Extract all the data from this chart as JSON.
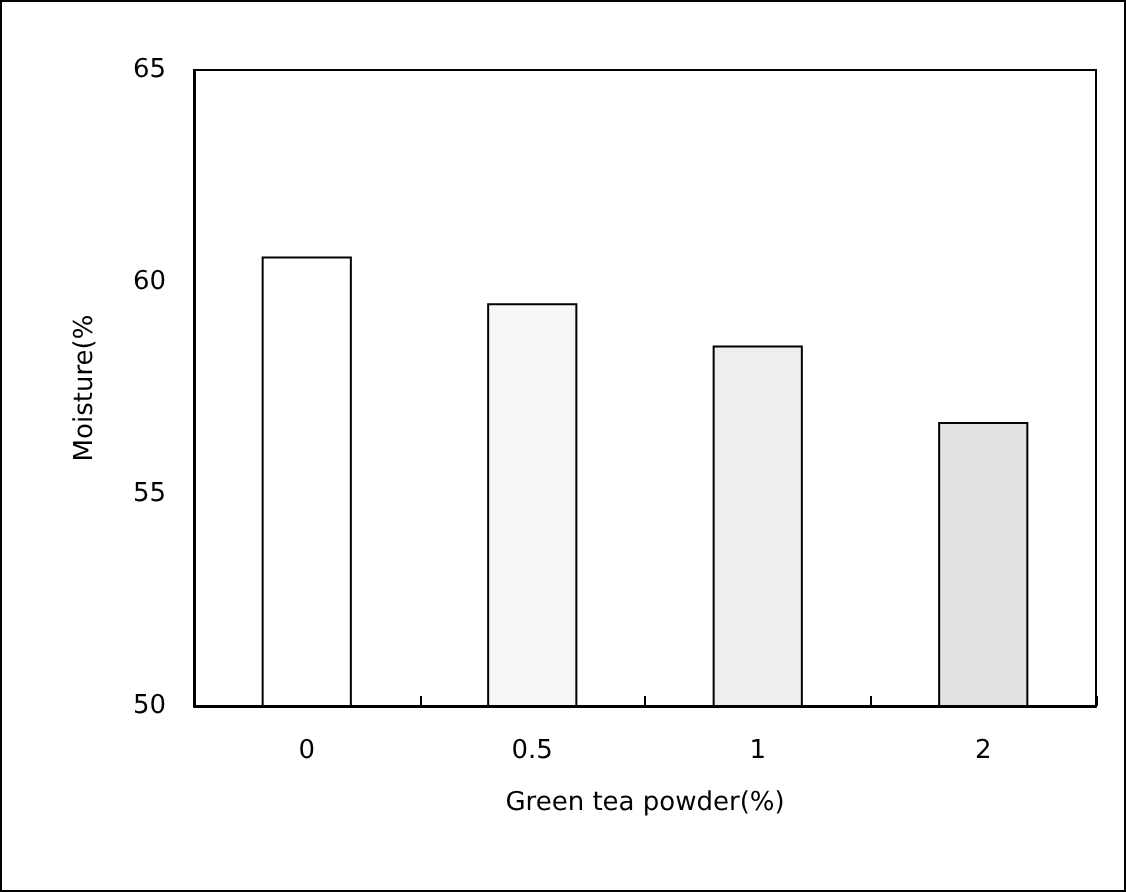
{
  "chart_data": {
    "type": "bar",
    "xlabel": "Green tea powder(%)",
    "ylabel": "Moisture(%",
    "categories": [
      "0",
      "0.5",
      "1",
      "2"
    ],
    "values": [
      60.6,
      59.5,
      58.5,
      56.7
    ],
    "colors": [
      "#ffffff",
      "#f7f7f7",
      "#eeeeee",
      "#e2e2e2"
    ],
    "ylim": [
      50,
      65
    ],
    "yticks": [
      50,
      55,
      60,
      65
    ],
    "grid": false
  }
}
